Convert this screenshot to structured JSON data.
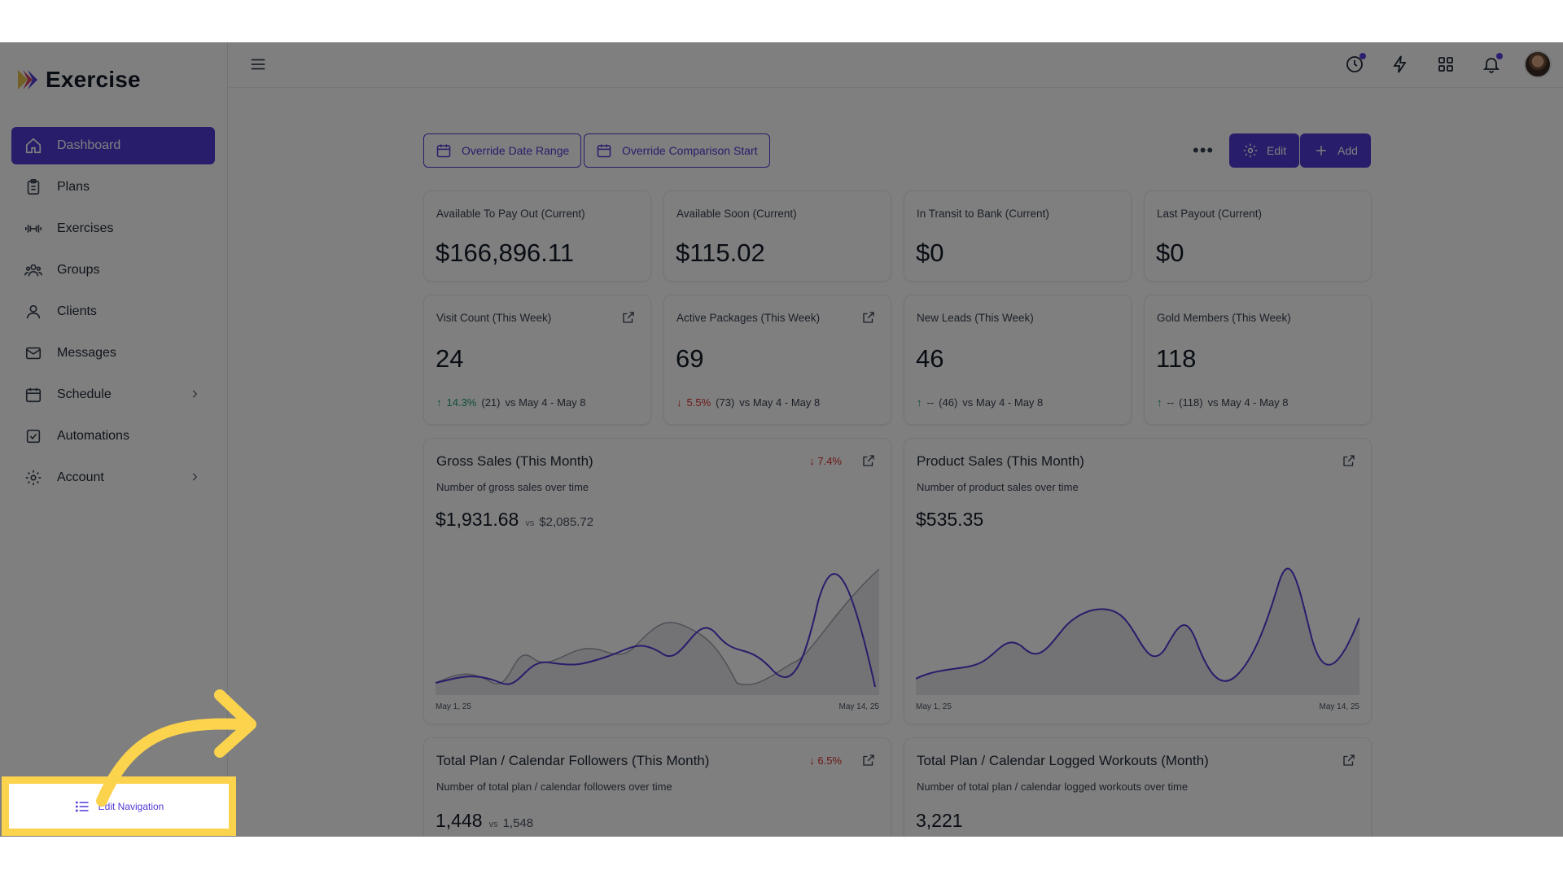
{
  "app": {
    "name": "Exercise"
  },
  "sidebar": {
    "items": [
      {
        "label": "Dashboard",
        "icon": "home-icon",
        "active": true
      },
      {
        "label": "Plans",
        "icon": "clipboard-icon"
      },
      {
        "label": "Exercises",
        "icon": "dumbbell-icon"
      },
      {
        "label": "Groups",
        "icon": "users-icon"
      },
      {
        "label": "Clients",
        "icon": "user-icon"
      },
      {
        "label": "Messages",
        "icon": "mail-icon"
      },
      {
        "label": "Schedule",
        "icon": "calendar-icon",
        "has_children": true
      },
      {
        "label": "Automations",
        "icon": "checkbox-icon"
      },
      {
        "label": "Account",
        "icon": "gear-icon",
        "has_children": true
      }
    ],
    "edit_navigation": "Edit Navigation"
  },
  "toolbar": {
    "override_date_range": "Override Date Range",
    "override_comparison_start": "Override Comparison Start",
    "more": "•••",
    "edit": "Edit",
    "add": "Add"
  },
  "stats": [
    {
      "label": "Available To Pay Out (Current)",
      "value": "$166,896.11"
    },
    {
      "label": "Available Soon (Current)",
      "value": "$115.02"
    },
    {
      "label": "In Transit to Bank (Current)",
      "value": "$0"
    },
    {
      "label": "Last Payout (Current)",
      "value": "$0"
    }
  ],
  "weekly": [
    {
      "label": "Visit Count (This Week)",
      "value": "24",
      "change": "14.3%",
      "direction": "up",
      "prev": "(21)",
      "range": "vs May 4 - May 8"
    },
    {
      "label": "Active Packages (This Week)",
      "value": "69",
      "change": "5.5%",
      "direction": "down",
      "prev": "(73)",
      "range": "vs May 4 - May 8"
    },
    {
      "label": "New Leads (This Week)",
      "value": "46",
      "change": "--",
      "direction": "up",
      "prev": "(46)",
      "range": "vs May 4 - May 8"
    },
    {
      "label": "Gold Members (This Week)",
      "value": "118",
      "change": "--",
      "direction": "up",
      "prev": "(118)",
      "range": "vs May 4 - May 8"
    }
  ],
  "charts": [
    {
      "title": "Gross Sales (This Month)",
      "subtitle": "Number of gross sales over time",
      "value": "$1,931.68",
      "vs": "vs",
      "prev": "$2,085.72",
      "change": "7.4%",
      "x_start": "May 1, 25",
      "x_end": "May 14, 25"
    },
    {
      "title": "Product Sales (This Month)",
      "subtitle": "Number of product sales over time",
      "value": "$535.35",
      "x_start": "May 1, 25",
      "x_end": "May 14, 25"
    },
    {
      "title": "Total Plan / Calendar Followers (This Month)",
      "subtitle": "Number of total plan / calendar followers over time",
      "value": "1,448",
      "vs": "vs",
      "prev": "1,548",
      "change": "6.5%"
    },
    {
      "title": "Total Plan / Calendar Logged Workouts (Month)",
      "subtitle": "Number of total plan / calendar logged workouts over time",
      "value": "3,221"
    }
  ],
  "colors": {
    "accent": "#4f3bd6",
    "highlight": "#fcd34d",
    "up": "#1a9e6a",
    "down": "#d92f2f"
  }
}
